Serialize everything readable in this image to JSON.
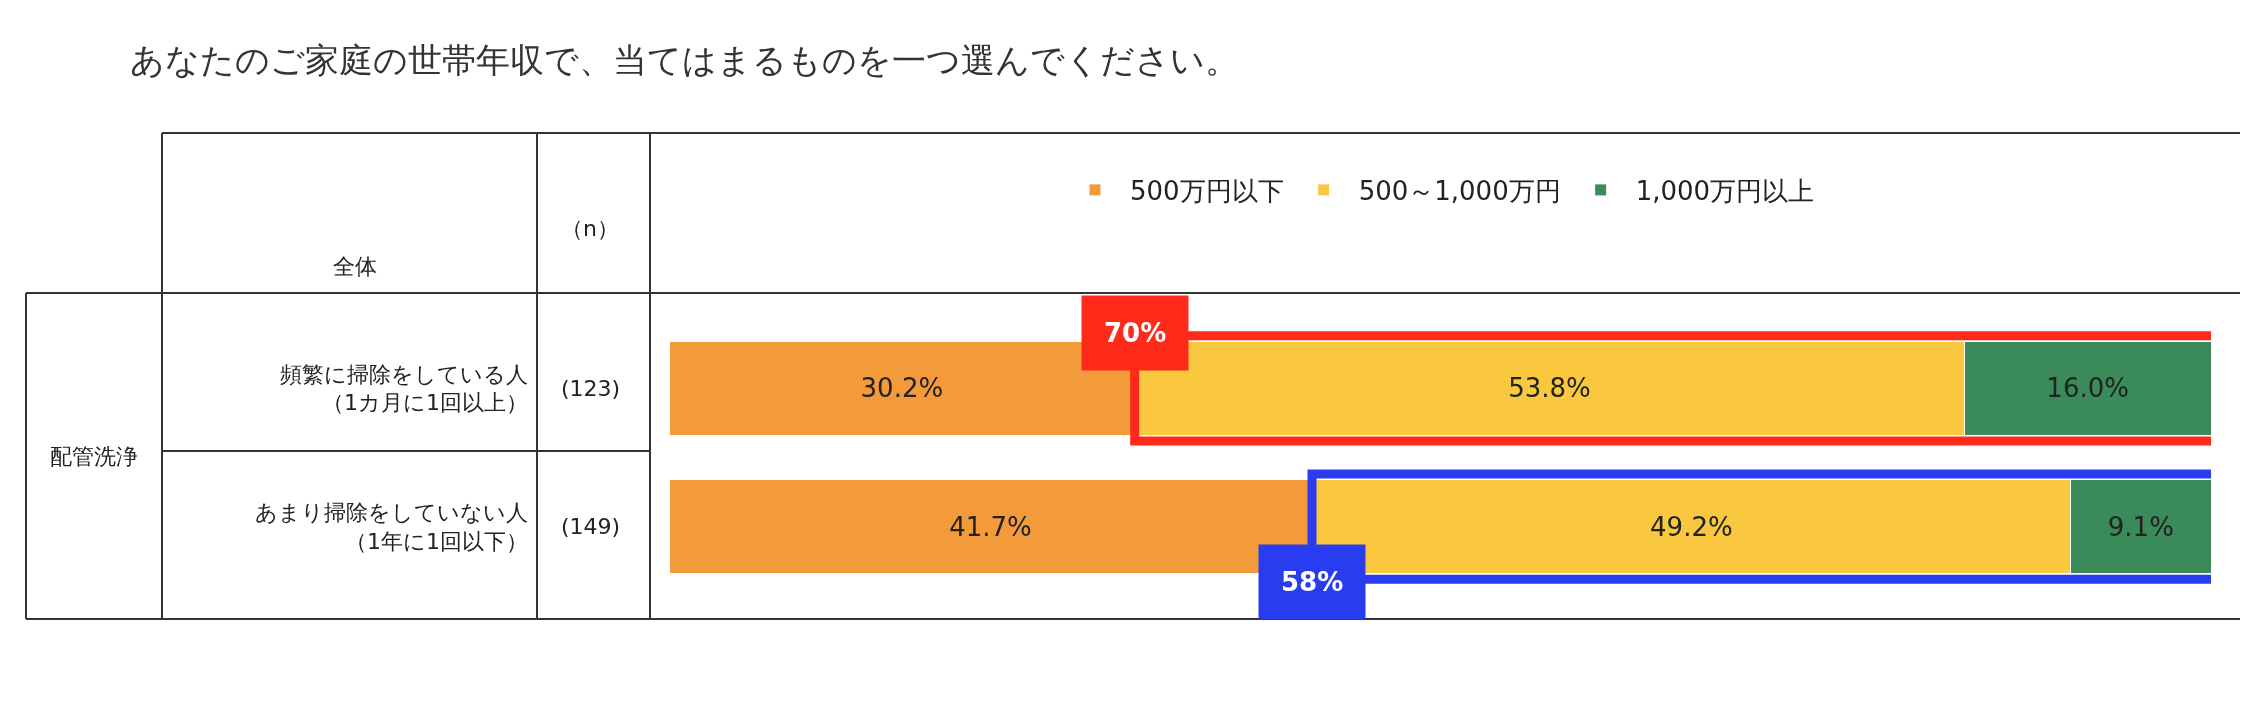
{
  "chart_data": {
    "type": "bar",
    "orientation": "horizontal",
    "stacked": true,
    "title": "あなたのご家庭の世帯年収で、当てはまるものを一つ選んでください。",
    "categories": [
      "頻繁に掃除をしている人（1カ月に1回以上）",
      "あまり掃除をしていない人（1年に1回以下）"
    ],
    "series": [
      {
        "name": "500万円以下",
        "color": "#f39a3a",
        "values": [
          30.2,
          41.7
        ],
        "value_labels": [
          "30.2%",
          "41.7%"
        ]
      },
      {
        "name": "500～1,000万円",
        "color": "#f9c83e",
        "values": [
          53.8,
          49.2
        ],
        "value_labels": [
          "53.8%",
          "49.2%"
        ]
      },
      {
        "name": "1,000万円以上",
        "color": "#3a8a5a",
        "values": [
          16.0,
          9.1
        ],
        "value_labels": [
          "16.0%",
          "9.1%"
        ]
      }
    ],
    "legend": "top",
    "annotations": [
      "全体",
      "（n）",
      "(123)",
      "(149)",
      "配管洗浄",
      {
        "text": "70%",
        "x": 30.2,
        "y": "頻繁に掃除をしている人（1カ月に1回以上）"
      },
      {
        "text": "58%",
        "x": 41.7,
        "y": "あまり掃除をしていない人（1年に1回以下）"
      }
    ]
  }
}
